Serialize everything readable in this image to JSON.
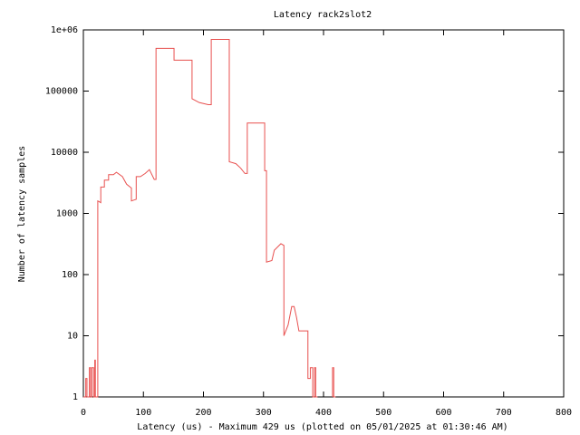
{
  "chart_data": {
    "type": "line",
    "title": "Latency rack2slot2",
    "x_label": "Latency (us) - Maximum 429 us (plotted on 05/01/2025 at 01:30:46 AM)",
    "y_label": "Number of latency samples",
    "log_y": true,
    "xlim": [
      0,
      800
    ],
    "ylim": [
      1,
      1000000
    ],
    "xticks": [
      0,
      100,
      200,
      300,
      400,
      500,
      600,
      700,
      800
    ],
    "yticks": [
      1,
      10,
      100,
      1000,
      10000,
      100000,
      {
        "value": 1000000,
        "label": "1e+06"
      }
    ],
    "series": [
      {
        "color": "#e8504f",
        "x": [
          0,
          4,
          4,
          6,
          6,
          10,
          10,
          12,
          12,
          14,
          14,
          17,
          17,
          19,
          19,
          20,
          20,
          24,
          24,
          29,
          29,
          35,
          35,
          42,
          42,
          50,
          55,
          65,
          72,
          80,
          80,
          88,
          88,
          95,
          103,
          110,
          118,
          121,
          121,
          151,
          151,
          181,
          181,
          193,
          208,
          213,
          213,
          243,
          243,
          254,
          262,
          269,
          273,
          273,
          302,
          302,
          305,
          305,
          314,
          318,
          329,
          334,
          334,
          341,
          347,
          351,
          355,
          359,
          374,
          374,
          378,
          378,
          382,
          382,
          385,
          385,
          387,
          387,
          390,
          400,
          415,
          415,
          417,
          417,
          420
        ],
        "values": [
          1,
          1,
          2,
          2,
          1,
          1,
          3,
          3,
          1,
          1,
          3,
          3,
          1,
          1,
          4,
          4,
          1,
          1,
          1600,
          1500,
          2700,
          2700,
          3500,
          3500,
          4300,
          4300,
          4700,
          4000,
          3000,
          2600,
          1600,
          1700,
          4000,
          4000,
          4500,
          5200,
          3600,
          3600,
          500000,
          500000,
          320000,
          320000,
          75000,
          65000,
          60000,
          60000,
          700000,
          700000,
          7000,
          6500,
          5500,
          4500,
          4500,
          30000,
          30000,
          5000,
          5000,
          160,
          170,
          250,
          320,
          300,
          10,
          15,
          30,
          30,
          20,
          12,
          12,
          2,
          2,
          3,
          3,
          1,
          1,
          3,
          3,
          1,
          1,
          null,
          1,
          3,
          3,
          1,
          1
        ]
      }
    ]
  }
}
